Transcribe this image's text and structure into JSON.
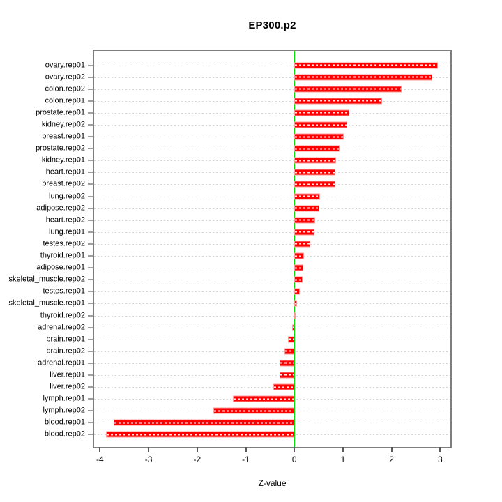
{
  "chart_data": {
    "type": "bar",
    "orientation": "horizontal",
    "title": "EP300.p2",
    "xlabel": "Z-value",
    "categories": [
      "ovary.rep01",
      "ovary.rep02",
      "colon.rep02",
      "colon.rep01",
      "prostate.rep01",
      "kidney.rep02",
      "breast.rep01",
      "prostate.rep02",
      "kidney.rep01",
      "heart.rep01",
      "breast.rep02",
      "lung.rep02",
      "adipose.rep02",
      "heart.rep02",
      "lung.rep01",
      "testes.rep02",
      "thyroid.rep01",
      "adipose.rep01",
      "skeletal_muscle.rep02",
      "testes.rep01",
      "skeletal_muscle.rep01",
      "thyroid.rep02",
      "adrenal.rep02",
      "brain.rep01",
      "brain.rep02",
      "adrenal.rep01",
      "liver.rep01",
      "liver.rep02",
      "lymph.rep01",
      "lymph.rep02",
      "blood.rep01",
      "blood.rep02"
    ],
    "values": [
      2.95,
      2.83,
      2.2,
      1.81,
      1.13,
      1.09,
      1.02,
      0.93,
      0.86,
      0.85,
      0.84,
      0.53,
      0.51,
      0.43,
      0.42,
      0.33,
      0.2,
      0.19,
      0.17,
      0.11,
      0.05,
      0.02,
      -0.05,
      -0.13,
      -0.21,
      -0.3,
      -0.31,
      -0.44,
      -1.26,
      -1.66,
      -3.72,
      -3.88
    ],
    "x_ticks": [
      -4,
      -3,
      -2,
      -1,
      0,
      1,
      2,
      3
    ],
    "xlim": [
      -4.12,
      3.21
    ],
    "zero_line_x": 0,
    "grid": "horizontal-dotted",
    "legend": "none",
    "colors": {
      "bar_fill": "#ff0000",
      "bar_border": "#ff9999",
      "bar_stripe": "#ffffff",
      "zero_line": "#00e400",
      "gridline": "#d4d4d4",
      "frame": "#7e7e7e",
      "text": "#000000"
    }
  }
}
